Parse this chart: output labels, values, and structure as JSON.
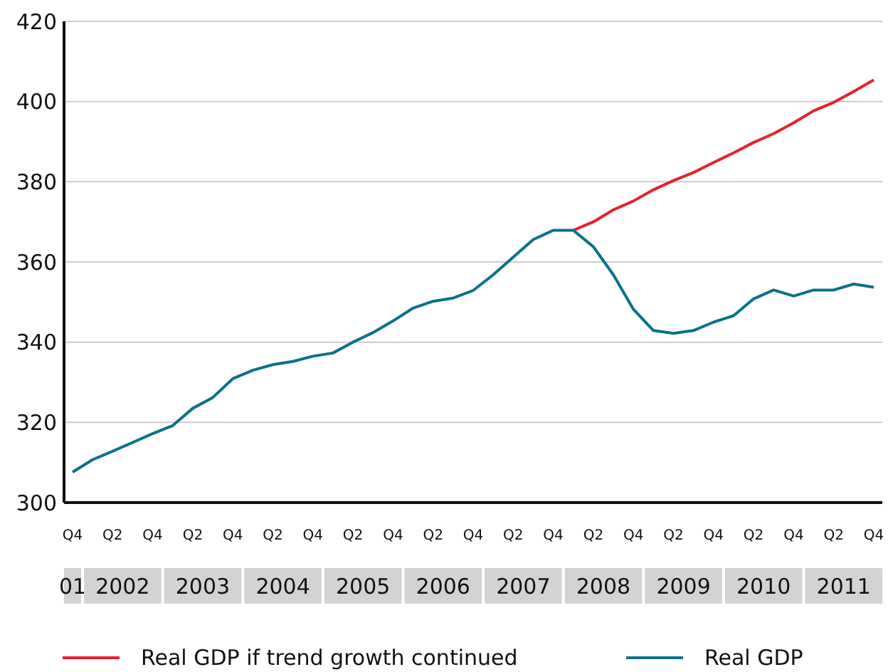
{
  "chart_data": {
    "type": "line",
    "categories": [
      "Q4",
      null,
      "Q2",
      null,
      "Q4",
      null,
      "Q2",
      null,
      "Q4",
      null,
      "Q2",
      null,
      "Q4",
      null,
      "Q2",
      null,
      "Q4",
      null,
      "Q2",
      null,
      "Q4",
      null,
      "Q2",
      null,
      "Q4",
      null,
      "Q2",
      null,
      "Q4",
      null,
      "Q2",
      null,
      "Q4",
      null,
      "Q2",
      null,
      "Q4",
      null,
      "Q2",
      null,
      "Q4"
    ],
    "series": [
      {
        "name": "Real GDP if trend growth continued",
        "color": "#e8202a",
        "values": [
          null,
          null,
          null,
          null,
          null,
          null,
          null,
          null,
          null,
          null,
          null,
          null,
          null,
          null,
          null,
          null,
          null,
          null,
          null,
          null,
          null,
          null,
          null,
          null,
          null,
          367.9,
          370,
          373,
          375.2,
          378,
          380.3,
          382.3,
          384.8,
          387.2,
          389.8,
          392,
          394.7,
          397.7,
          399.8,
          402.5,
          405.4
        ]
      },
      {
        "name": "Real GDP",
        "color": "#0b7189",
        "values": [
          307.6,
          310.7,
          312.8,
          315,
          317.2,
          319.2,
          323.5,
          326.2,
          330.9,
          333,
          334.4,
          335.2,
          336.5,
          337.3,
          340,
          342.4,
          345.3,
          348.5,
          350.2,
          351,
          352.9,
          356.8,
          361.2,
          365.6,
          367.9,
          367.9,
          363.8,
          356.8,
          348.2,
          342.9,
          342.2,
          342.9,
          345,
          346.6,
          350.8,
          353,
          351.5,
          353,
          353,
          354.5,
          353.7
        ]
      }
    ],
    "annotations": [
      "01",
      "2002",
      "2003",
      "2004",
      "2005",
      "2006",
      "2007",
      "2008",
      "2009",
      "2010",
      "2011"
    ],
    "ylim": [
      300,
      420
    ],
    "yticks": [
      300,
      320,
      340,
      360,
      380,
      400,
      420
    ],
    "grid": "y",
    "legend": "bottom",
    "marker": "none",
    "line_style": "solid"
  }
}
